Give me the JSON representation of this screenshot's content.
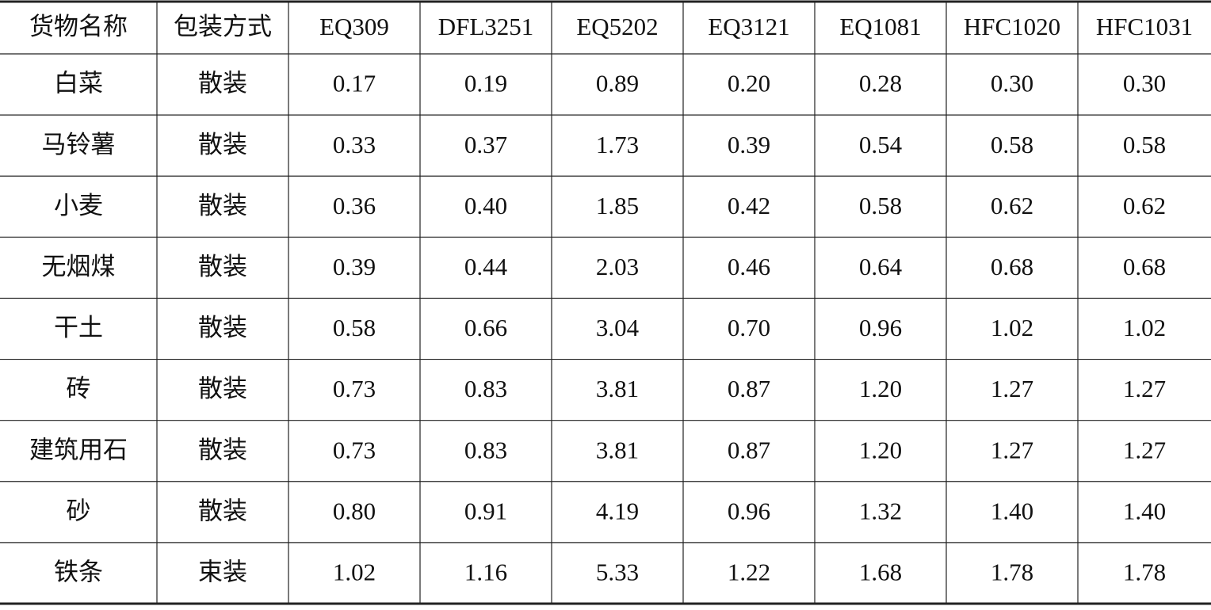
{
  "table": {
    "header": [
      "货物名称",
      "包装方式",
      "EQ309",
      "DFL3251",
      "EQ5202",
      "EQ3121",
      "EQ1081",
      "HFC1020",
      "HFC1031"
    ],
    "rows": [
      [
        "白菜",
        "散装",
        "0.17",
        "0.19",
        "0.89",
        "0.20",
        "0.28",
        "0.30",
        "0.30"
      ],
      [
        "马铃薯",
        "散装",
        "0.33",
        "0.37",
        "1.73",
        "0.39",
        "0.54",
        "0.58",
        "0.58"
      ],
      [
        "小麦",
        "散装",
        "0.36",
        "0.40",
        "1.85",
        "0.42",
        "0.58",
        "0.62",
        "0.62"
      ],
      [
        "无烟煤",
        "散装",
        "0.39",
        "0.44",
        "2.03",
        "0.46",
        "0.64",
        "0.68",
        "0.68"
      ],
      [
        "干土",
        "散装",
        "0.58",
        "0.66",
        "3.04",
        "0.70",
        "0.96",
        "1.02",
        "1.02"
      ],
      [
        "砖",
        "散装",
        "0.73",
        "0.83",
        "3.81",
        "0.87",
        "1.20",
        "1.27",
        "1.27"
      ],
      [
        "建筑用石",
        "散装",
        "0.73",
        "0.83",
        "3.81",
        "0.87",
        "1.20",
        "1.27",
        "1.27"
      ],
      [
        "砂",
        "散装",
        "0.80",
        "0.91",
        "4.19",
        "0.96",
        "1.32",
        "1.40",
        "1.40"
      ],
      [
        "铁条",
        "束装",
        "1.02",
        "1.16",
        "5.33",
        "1.22",
        "1.68",
        "1.78",
        "1.78"
      ]
    ]
  }
}
